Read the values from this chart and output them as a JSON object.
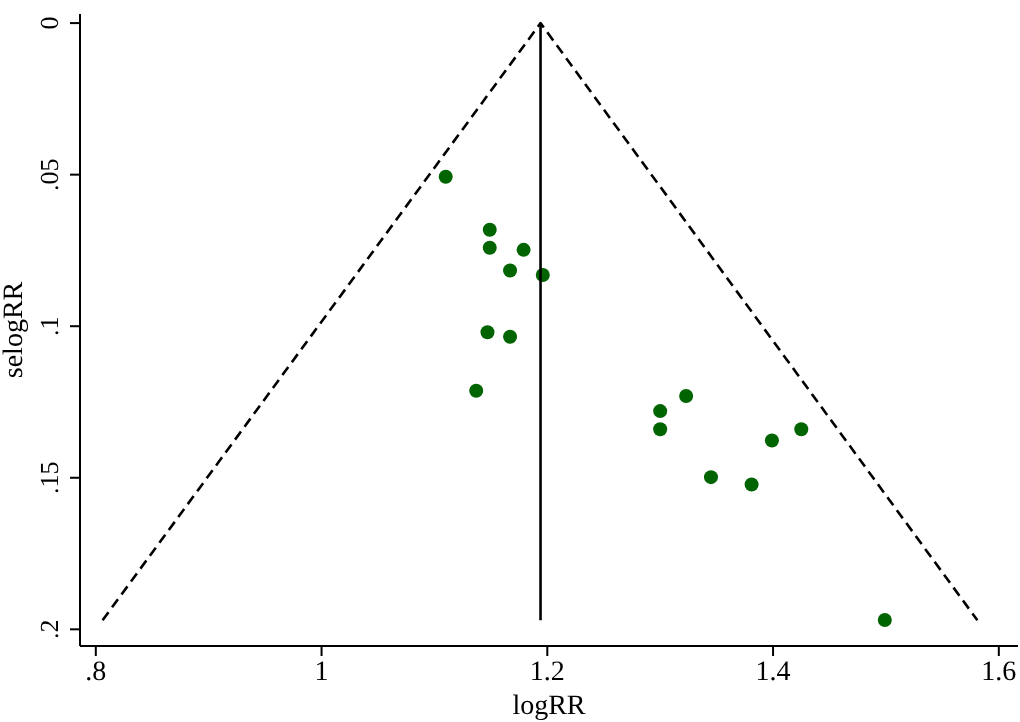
{
  "chart_data": {
    "type": "scatter",
    "xlabel": "logRR",
    "ylabel": "selogRR",
    "xlim": [
      0.786,
      1.617
    ],
    "ylim": [
      0.2055,
      -0.003
    ],
    "xticks": [
      {
        "value": 0.8,
        "label": ".8"
      },
      1,
      1.2,
      1.4,
      1.6
    ],
    "yticks": [
      0,
      {
        "value": 0.05,
        "label": ".05"
      },
      {
        "value": 0.1,
        "label": ".1"
      },
      {
        "value": 0.15,
        "label": ".15"
      },
      {
        "value": 0.2,
        "label": ".2"
      }
    ],
    "grid": false,
    "legend": false,
    "marker": "circle",
    "series": [
      {
        "color": "#006400",
        "x": [
          1.11,
          1.149,
          1.149,
          1.179,
          1.167,
          1.196,
          1.147,
          1.167,
          1.137,
          1.3,
          1.323,
          1.3,
          1.425,
          1.399,
          1.345,
          1.381,
          1.499
        ],
        "values": [
          0.0507,
          0.0682,
          0.0741,
          0.0748,
          0.0816,
          0.0831,
          0.102,
          0.1035,
          0.1213,
          0.128,
          0.123,
          0.134,
          0.134,
          0.1377,
          0.1498,
          0.1522,
          0.1969
        ]
      },
      {
        "type": "line",
        "color": "#000000",
        "marker": "none",
        "line_style": "dashed",
        "x": [
          0.806,
          1.194,
          1.581
        ],
        "values": [
          0.197,
          0,
          0.197
        ]
      },
      {
        "type": "line",
        "color": "#000000",
        "marker": "none",
        "line_style": "solid",
        "x": [
          1.194,
          1.194
        ],
        "values": [
          0,
          0.197
        ]
      }
    ]
  }
}
